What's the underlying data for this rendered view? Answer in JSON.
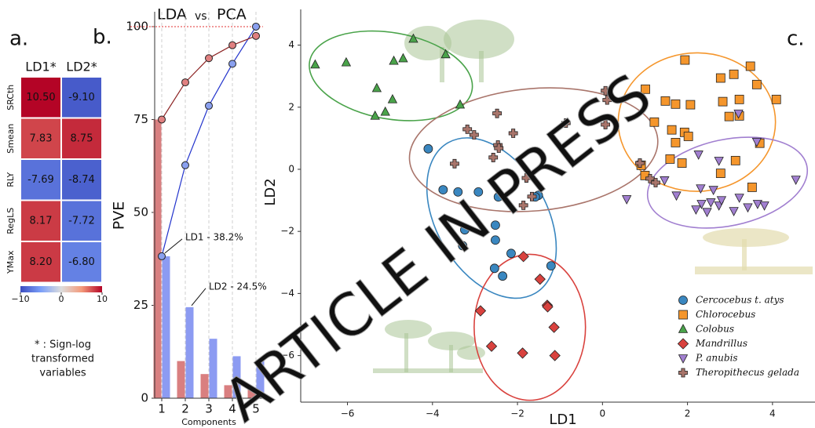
{
  "chart_data": [
    {
      "type": "heatmap",
      "panel": "a.",
      "columns": [
        "LD1*",
        "LD2*"
      ],
      "rows": [
        "SRCth",
        "Smean",
        "RLY",
        "RegLS",
        "YMax"
      ],
      "row_colors": [
        "#3a9a3a",
        "#4a3fb8",
        "#3a9a3a",
        "#3a9a3a",
        "#3a9a3a"
      ],
      "values": [
        [
          10.5,
          -9.1
        ],
        [
          7.83,
          8.75
        ],
        [
          -7.69,
          -8.74
        ],
        [
          8.17,
          -7.72
        ],
        [
          8.2,
          -6.8
        ]
      ],
      "value_labels": [
        [
          "10.50",
          "-9.10"
        ],
        [
          "7.83",
          "8.75"
        ],
        [
          "-7.69",
          "-8.74"
        ],
        [
          "8.17",
          "-7.72"
        ],
        [
          "8.20",
          "-6.80"
        ]
      ],
      "clim": [
        -10,
        10
      ],
      "cticks": [
        {
          "value": -10,
          "label": "−10"
        },
        0,
        10
      ],
      "colormap": [
        "#3b4cc0",
        "#7b9ff9",
        "#dddddd",
        "#f49a7b",
        "#b40426"
      ],
      "note": [
        "* : Sign-log",
        "transformed",
        "variables"
      ]
    },
    {
      "type": "bar",
      "panel": "b.",
      "title_mid": "vs.",
      "x": [
        1,
        2,
        3,
        4,
        5
      ],
      "xlim": [
        0.7,
        5.3
      ],
      "xticks": [
        1,
        2,
        3,
        4,
        5
      ],
      "ylim": [
        0,
        104
      ],
      "yticks": [
        0,
        25,
        50,
        75,
        100
      ],
      "xlabel": "Components",
      "ylabel": "PVE",
      "reference_line": 100,
      "reference_color": "#e03030",
      "series": [
        {
          "name": "LDA",
          "color": "#8c9bf2",
          "values": [
            38.2,
            24.5,
            16,
            11.3,
            10
          ]
        },
        {
          "name": "PCA",
          "color": "#d97f80",
          "values": [
            75,
            10,
            6.5,
            3.5,
            2.5
          ]
        }
      ],
      "lines": [
        {
          "color": "#2233cc",
          "marker_color": "#8aa0ef",
          "values": [
            38.2,
            62.7,
            78.7,
            90,
            100
          ]
        },
        {
          "color": "#8b2020",
          "marker_color": "#e08080",
          "values": [
            75,
            85,
            91.5,
            95,
            97.5
          ]
        }
      ],
      "annotations": [
        "LD1 - 38.2%",
        "LD2 - 24.5%"
      ]
    },
    {
      "type": "scatter",
      "panel": "c.",
      "xlabel": "LD1",
      "ylabel": "LD2",
      "xlim": [
        -7.1,
        5.0
      ],
      "ylim": [
        -7.5,
        5.15
      ],
      "xticks": [
        {
          "value": -6,
          "label": "−6"
        },
        {
          "value": -4,
          "label": "−4"
        },
        {
          "value": -2,
          "label": "−2"
        },
        0,
        2,
        4
      ],
      "yticks": [
        {
          "value": -6,
          "label": "−6"
        },
        {
          "value": -4,
          "label": "−4"
        },
        {
          "value": -2,
          "label": "−2"
        },
        0,
        2,
        4
      ],
      "legend": "lower right",
      "watermark": "ARTICLE IN PRESS",
      "series": [
        {
          "name": "Cercocebus t. atys",
          "color": "#3a87c0",
          "marker": "o",
          "x": [
            -4.1,
            -3.75,
            -3.4,
            -2.92,
            -2.45,
            -1.51,
            -1.58,
            -3.24,
            -2.52,
            -3.29,
            -2.52,
            -2.15,
            -2.54,
            -2.35,
            -1.21
          ],
          "y": [
            0.66,
            -0.66,
            -0.73,
            -0.73,
            -0.89,
            -0.84,
            -0.89,
            -1.95,
            -1.8,
            -2.46,
            -2.28,
            -2.71,
            -3.19,
            -3.44,
            -3.11
          ],
          "ellipse": {
            "cx": -2.61,
            "cy": -1.57,
            "rx": 1.3,
            "ry": 2.8,
            "angle": -30
          }
        },
        {
          "name": "Chlorocebus",
          "color": "#f5962c",
          "marker": "s",
          "x": [
            1.94,
            3.09,
            2.78,
            3.48,
            3.63,
            1.01,
            1.48,
            1.72,
            2.07,
            2.83,
            3.22,
            4.09,
            1.22,
            1.63,
            1.93,
            2.02,
            2.98,
            3.22,
            1.72,
            1.59,
            0.91,
            3.13,
            3.7,
            1.0,
            2.78,
            3.52,
            1.87
          ],
          "y": [
            3.52,
            3.06,
            2.94,
            3.32,
            2.73,
            2.58,
            2.2,
            2.1,
            2.08,
            2.18,
            2.25,
            2.25,
            1.52,
            1.27,
            1.19,
            1.06,
            1.7,
            1.72,
            0.86,
            0.33,
            0.13,
            0.28,
            0.84,
            -0.2,
            -0.13,
            -0.58,
            0.2
          ],
          "ellipse": {
            "cx": 2.22,
            "cy": 1.52,
            "rx": 1.85,
            "ry": 2.23,
            "angle": 0
          }
        },
        {
          "name": "Colobus",
          "color": "#4aa34a",
          "marker": "^",
          "x": [
            -6.76,
            -6.03,
            -4.45,
            -4.91,
            -4.69,
            -3.69,
            -5.31,
            -4.94,
            -5.35,
            -5.11,
            -3.35
          ],
          "y": [
            3.37,
            3.44,
            4.2,
            3.49,
            3.57,
            3.7,
            2.61,
            2.25,
            1.72,
            1.85,
            2.08
          ],
          "ellipse": {
            "cx": -4.98,
            "cy": 3.01,
            "rx": 1.94,
            "ry": 1.39,
            "angle": 10
          }
        },
        {
          "name": "Mandrillus",
          "color": "#d9423e",
          "marker": "D",
          "x": [
            -1.86,
            -1.47,
            -1.3,
            -1.29,
            -2.87,
            -1.14,
            -2.61,
            -1.88,
            -1.12
          ],
          "y": [
            -2.81,
            -3.54,
            -4.38,
            -4.43,
            -4.56,
            -5.09,
            -5.7,
            -5.92,
            -6.0
          ],
          "ellipse": {
            "cx": -1.71,
            "cy": -5.09,
            "rx": 1.31,
            "ry": 2.35,
            "angle": 0
          }
        },
        {
          "name": "P. anubis",
          "color": "#a17fd0",
          "marker": "v",
          "x": [
            3.63,
            2.26,
            2.74,
            4.55,
            1.46,
            1.74,
            0.57,
            2.31,
            2.61,
            2.33,
            2.55,
            2.2,
            2.46,
            2.74,
            2.8,
            3.09,
            3.22,
            3.42,
            3.65,
            3.81,
            3.2
          ],
          "y": [
            0.89,
            0.48,
            0.28,
            -0.33,
            -0.35,
            -0.84,
            -0.96,
            -0.61,
            -0.66,
            -1.11,
            -1.06,
            -1.29,
            -1.37,
            -1.16,
            -0.99,
            -1.34,
            -0.91,
            -1.22,
            -1.11,
            -1.16,
            1.8
          ],
          "ellipse": {
            "cx": 2.94,
            "cy": -0.43,
            "rx": 1.91,
            "ry": 1.39,
            "angle": -12
          }
        },
        {
          "name": "Theropithecus gelada",
          "color": "#a9756b",
          "marker": "P",
          "x": [
            -3.18,
            -3.02,
            -2.48,
            -3.48,
            -2.46,
            -2.44,
            -2.57,
            -2.1,
            -1.79,
            -1.86,
            -0.86,
            0.07,
            0.07,
            0.11,
            0.88,
            1.12,
            1.25,
            -1.66
          ],
          "y": [
            1.29,
            1.11,
            1.8,
            0.18,
            0.78,
            0.68,
            0.38,
            1.16,
            -0.28,
            -1.16,
            1.49,
            2.53,
            1.44,
            2.23,
            0.2,
            -0.3,
            -0.43,
            -0.88
          ],
          "ellipse": {
            "cx": -1.62,
            "cy": 0.63,
            "rx": 2.93,
            "ry": 1.97,
            "angle": -5
          }
        }
      ]
    }
  ]
}
